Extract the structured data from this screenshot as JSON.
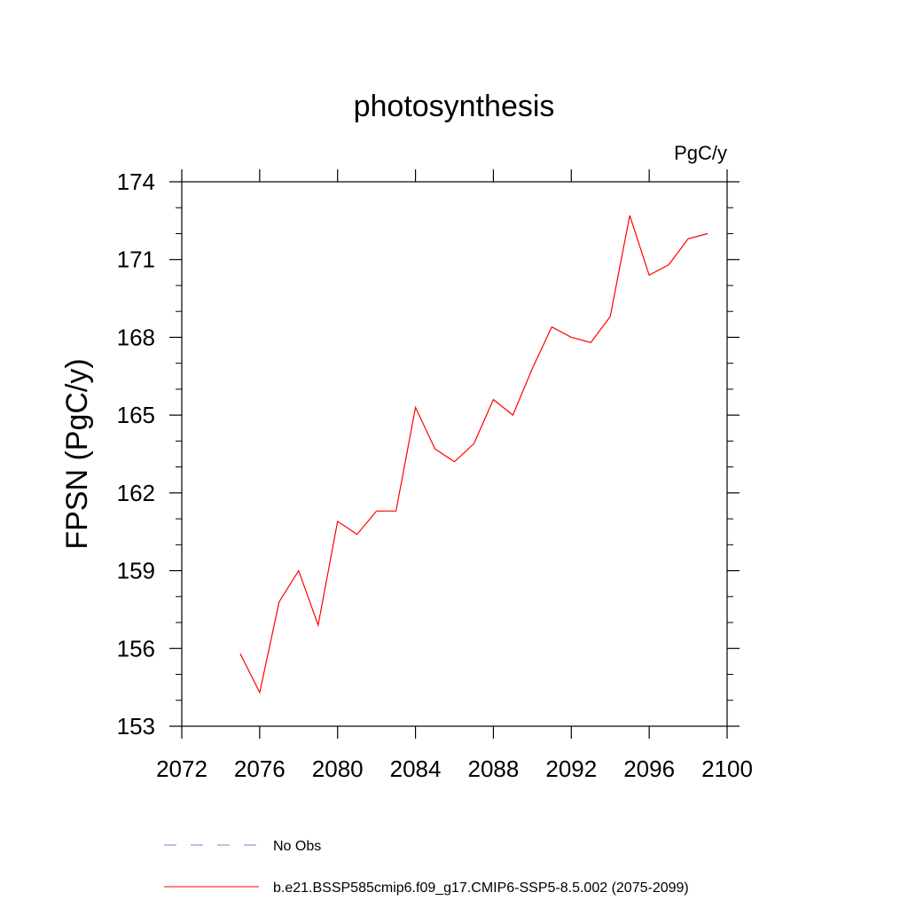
{
  "chart_data": {
    "type": "line",
    "title": "photosynthesis",
    "units_label": "PgC/y",
    "xlabel": "",
    "ylabel": "FPSN  (PgC/y)",
    "xlim": [
      2072,
      2100
    ],
    "ylim": [
      153,
      174
    ],
    "x_ticks": [
      2072,
      2076,
      2080,
      2084,
      2088,
      2092,
      2096,
      2100
    ],
    "x_tick_labels": [
      "2072",
      "2076",
      "2080",
      "2084",
      "2088",
      "2092",
      "2096",
      "2100"
    ],
    "y_ticks": [
      153,
      156,
      159,
      162,
      165,
      168,
      171,
      174
    ],
    "y_tick_labels": [
      "153",
      "156",
      "159",
      "162",
      "165",
      "168",
      "171",
      "174"
    ],
    "grid": false,
    "legend_position": "bottom",
    "series": [
      {
        "name": "b.e21.BSSP585cmip6.f09_g17.CMIP6-SSP5-8.5.002 (2075-2099)",
        "color": "#ff0000",
        "line_style": "solid",
        "x": [
          2075,
          2076,
          2077,
          2078,
          2079,
          2080,
          2081,
          2082,
          2083,
          2084,
          2085,
          2086,
          2087,
          2088,
          2089,
          2090,
          2091,
          2092,
          2093,
          2094,
          2095,
          2096,
          2097,
          2098,
          2099
        ],
        "y": [
          155.8,
          154.3,
          157.8,
          159.0,
          156.9,
          160.9,
          160.4,
          161.3,
          161.3,
          165.3,
          163.7,
          163.2,
          163.9,
          165.6,
          165.0,
          166.8,
          168.4,
          168.0,
          167.8,
          168.8,
          172.7,
          170.4,
          170.8,
          171.8,
          172.0
        ]
      }
    ],
    "legend": [
      {
        "label": "No Obs",
        "color": "#7f7fd0",
        "line_style": "dashed"
      },
      {
        "label": "b.e21.BSSP585cmip6.f09_g17.CMIP6-SSP5-8.5.002 (2075-2099)",
        "color": "#ff0000",
        "line_style": "solid"
      }
    ]
  }
}
